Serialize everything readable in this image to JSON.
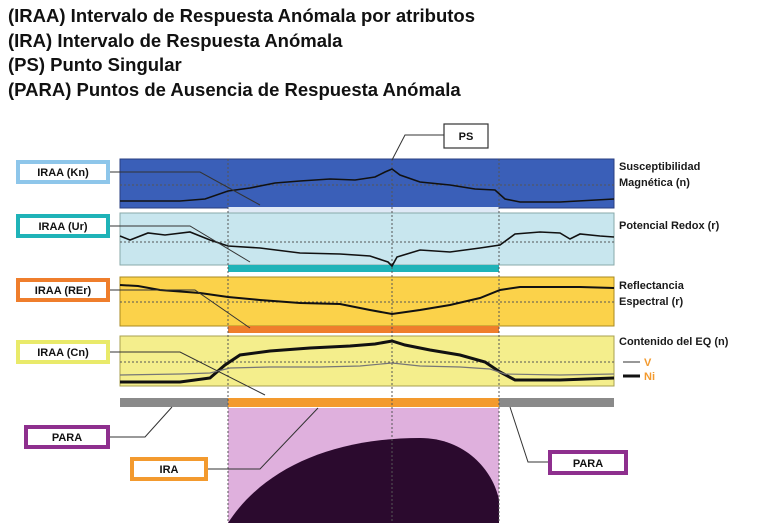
{
  "legend": [
    "(IRAA) Intervalo de Respuesta Anómala por atributos",
    "(IRA) Intervalo de Respuesta Anómala",
    "(PS) Punto Singular",
    "(PARA) Puntos de Ausencia de Respuesta Anómala"
  ],
  "tags": {
    "ps": "PS",
    "iraa_kn": "IRAA (Kn)",
    "iraa_ur": "IRAA (Ur)",
    "iraa_rer": "IRAA (REr)",
    "iraa_cn": "IRAA (Cn)",
    "para_left": "PARA",
    "ira": "IRA",
    "para_right": "PARA"
  },
  "panels": [
    {
      "label_lines": [
        "Susceptibilidad",
        "Magnética (n)"
      ],
      "color": "#3a5fb8"
    },
    {
      "label_lines": [
        "Potencial Redox (r)"
      ],
      "color": "#c8e6ee"
    },
    {
      "label_lines": [
        "Reflectancia",
        "Espectral (r)"
      ],
      "color": "#fbd24a"
    },
    {
      "label_lines": [
        "Contenido del EQ (n)"
      ],
      "color": "#f4ee8c"
    }
  ],
  "series_legend": [
    {
      "label": "V",
      "color": "#f39a2e"
    },
    {
      "label": "Ni",
      "color": "#f39a2e"
    }
  ],
  "colors": {
    "kn_tag": "#8ec6ea",
    "ur_tag": "#1fb3b8",
    "rer_tag": "#ef7e2c",
    "cn_tag": "#e9ea6a",
    "para": "#8e2f8e",
    "ira": "#f39a2e",
    "ira_zone": "#dfb0dd",
    "dome": "#2b0a2e",
    "para_bar": "#8a8a8a"
  }
}
